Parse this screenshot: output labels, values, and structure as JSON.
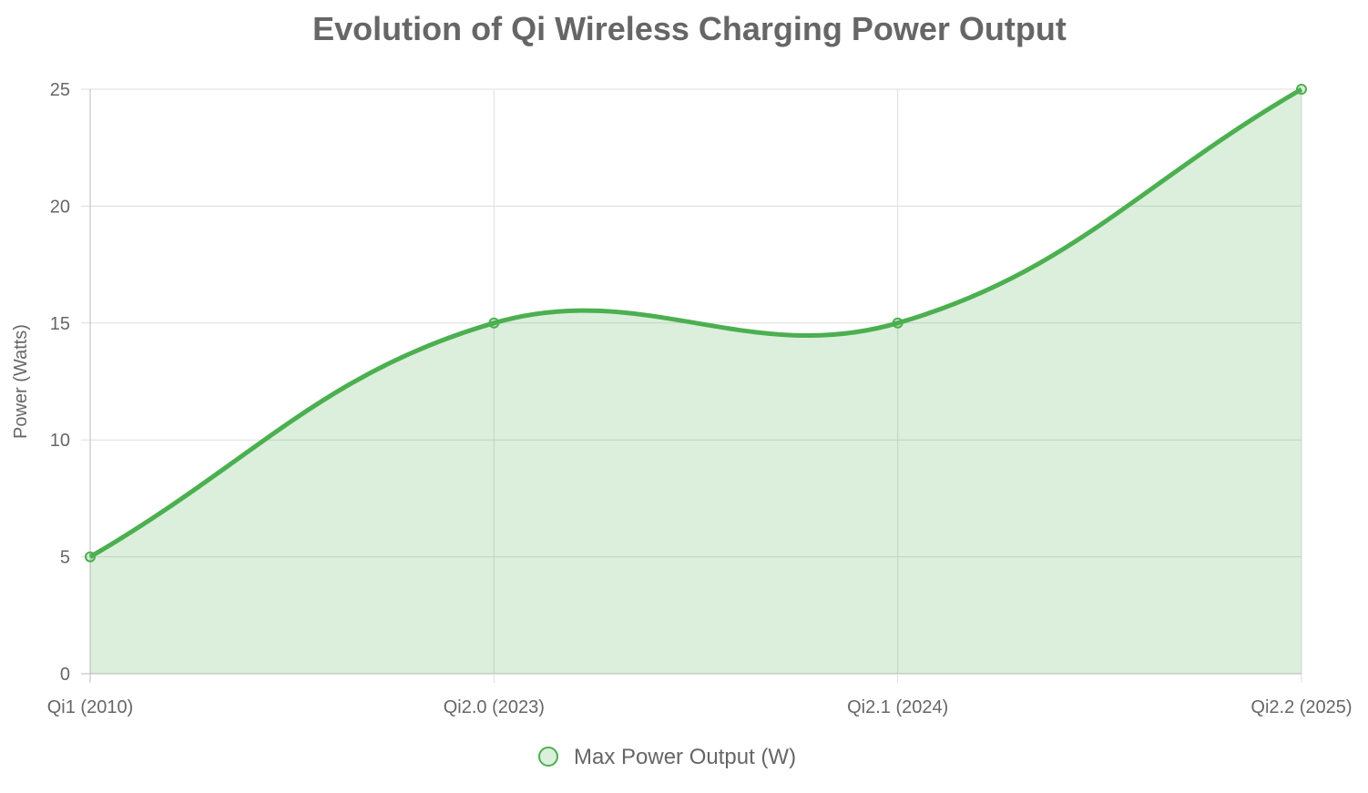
{
  "chart_data": {
    "type": "area",
    "title": "Evolution of Qi Wireless Charging Power Output",
    "xlabel": "",
    "ylabel": "Power (Watts)",
    "categories": [
      "Qi1 (2010)",
      "Qi2.0 (2023)",
      "Qi2.1 (2024)",
      "Qi2.2 (2025)"
    ],
    "series": [
      {
        "name": "Max Power Output (W)",
        "values": [
          5,
          15,
          15,
          25
        ],
        "color": "#4caf50",
        "fill": "rgba(76,175,80,0.2)"
      }
    ],
    "ylim": [
      0,
      25
    ],
    "yticks": [
      0,
      5,
      10,
      15,
      20,
      25
    ],
    "grid": true,
    "legend": "bottom",
    "curve": "smooth"
  }
}
